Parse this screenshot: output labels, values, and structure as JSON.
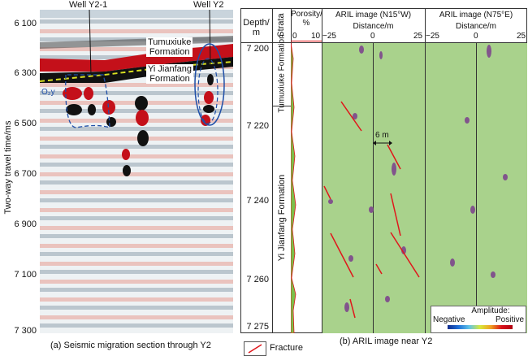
{
  "panel_a": {
    "wells": [
      "Well Y2-1",
      "Well Y2"
    ],
    "formations": {
      "upper": [
        "Tumuxiuke",
        "Formation"
      ],
      "lower": [
        "Yi Jianfang",
        "Formation"
      ]
    },
    "unit_label": "O₂y",
    "y_axis_title": "Two-way travel time/ms",
    "y_ticks": [
      "6 100",
      "6 300",
      "6 500",
      "6 700",
      "6 900",
      "7 100",
      "7 300"
    ],
    "caption": "(a) Seismic migration section through Y2"
  },
  "panel_b": {
    "headers": {
      "depth": [
        "Depth/",
        "m"
      ],
      "strata": "Strata",
      "porosity": [
        "Porosity/",
        "%"
      ],
      "porosity_ticks": [
        "0",
        "10"
      ],
      "aril1_title": "ARIL image (N15°W)",
      "aril2_title": "ARIL image (N75°E)",
      "distance": "Distance/m",
      "distance_ticks": [
        "−25",
        "0",
        "25"
      ]
    },
    "depth_ticks": [
      "7 200",
      "7 220",
      "7 240",
      "7 260",
      "7 275"
    ],
    "strata": [
      "Tumuxiuke Formation",
      "Yi Jianfang Formation"
    ],
    "spacing_label": "6 m",
    "amplitude_legend": {
      "title": "Amplitude:",
      "negative": "Negative",
      "positive": "Positive"
    },
    "caption": "(b) ARIL image near Y2"
  },
  "legend": {
    "fracture": "Fracture"
  },
  "colors": {
    "fracture": "#e0161b",
    "aril_bg": "#a9d28c",
    "seismic_red": "#c4101a",
    "ellipse": "#1f4fa8",
    "horizon": "#d9e021"
  }
}
